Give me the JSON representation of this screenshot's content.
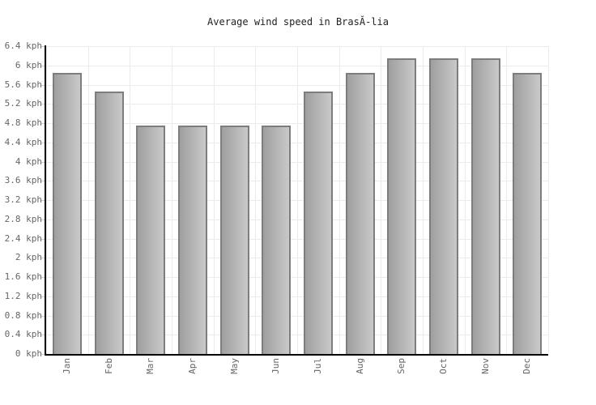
{
  "page": {
    "background": "#ffffff"
  },
  "chart_data": {
    "type": "bar",
    "title": "Average wind speed in BrasĂ-lia",
    "categories": [
      "Jan",
      "Feb",
      "Mar",
      "Apr",
      "May",
      "Jun",
      "Jul",
      "Aug",
      "Sep",
      "Oct",
      "Nov",
      "Dec"
    ],
    "values": [
      5.85,
      5.45,
      4.75,
      4.75,
      4.75,
      4.75,
      5.45,
      5.85,
      6.15,
      6.15,
      6.15,
      5.85
    ],
    "unit": "kph",
    "xlabel": "",
    "ylabel": "",
    "ylim": [
      0,
      6.4
    ],
    "ytick_step": 0.4,
    "ytick_labels": [
      "6.4 kph",
      "6 kph",
      "5.6 kph",
      "5.2 kph",
      "4.8 kph",
      "4.4 kph",
      "4 kph",
      "3.6 kph",
      "3.2 kph",
      "2.8 kph",
      "2.4 kph",
      "2 kph",
      "1.6 kph",
      "1.2 kph",
      "0.8 kph",
      "0.4 kph",
      "0 kph"
    ],
    "grid": true,
    "legend_position": "none",
    "style": {
      "bar_gradient_left": "#9f9f9f",
      "bar_gradient_right": "#c9c9c9",
      "bar_border_color": "#7d7d7d",
      "grid_color": "#ebebeb",
      "tick_color": "#cccccc",
      "axis_color": "#000000",
      "label_color": "#666666",
      "title_color": "#222222"
    }
  }
}
